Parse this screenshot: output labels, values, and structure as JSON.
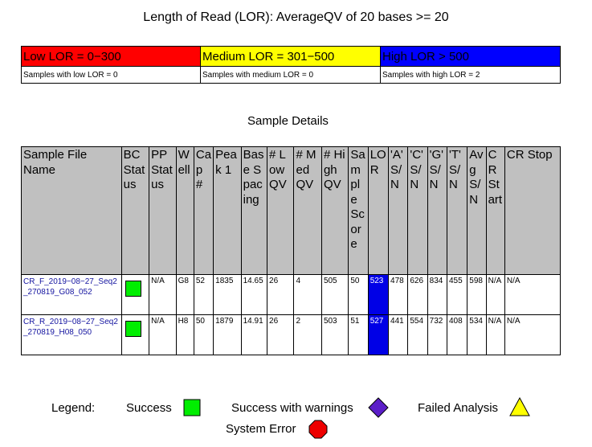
{
  "title": "Length of Read (LOR): AverageQV of 20 bases >= 20",
  "lor_summary": {
    "low": {
      "label": "Low LOR = 0−300",
      "color": "#ff0000",
      "count_text": "Samples with low LOR = 0"
    },
    "medium": {
      "label": "Medium LOR = 301−500",
      "color": "#ffff00",
      "count_text": "Samples with medium LOR = 0"
    },
    "high": {
      "label": "High LOR > 500",
      "color": "#0000ff",
      "count_text": "Samples with high LOR = 2"
    }
  },
  "details_title": "Sample Details",
  "columns": [
    "Sample File Name",
    "BC Status",
    "PP Status",
    "Well",
    "Cap #",
    "Peak 1",
    "Base Spacing",
    "# Low QV",
    "# Med QV",
    "# High QV",
    "Sample Score",
    "LOR",
    "'A' S/N",
    "'C' S/N",
    "'G' S/N",
    "'T' S/N",
    "Avg S/N",
    "CR Start",
    "CR Stop"
  ],
  "rows": [
    {
      "file": "CR_F_2019−08−27_Seq2_270819_G08_052",
      "bc_status_icon": "success-icon",
      "pp_status": "N/A",
      "well": "G8",
      "cap": "52",
      "peak1": "1835",
      "base_spacing": "14.65",
      "low_qv": "26",
      "med_qv": "4",
      "high_qv": "505",
      "sample_score": "50",
      "lor": "523",
      "a_sn": "478",
      "c_sn": "626",
      "g_sn": "834",
      "t_sn": "455",
      "avg_sn": "598",
      "cr_start": "N/A",
      "cr_stop": "N/A"
    },
    {
      "file": "CR_R_2019−08−27_Seq2_270819_H08_050",
      "bc_status_icon": "success-icon",
      "pp_status": "N/A",
      "well": "H8",
      "cap": "50",
      "peak1": "1879",
      "base_spacing": "14.91",
      "low_qv": "26",
      "med_qv": "2",
      "high_qv": "503",
      "sample_score": "51",
      "lor": "527",
      "a_sn": "441",
      "c_sn": "554",
      "g_sn": "732",
      "t_sn": "408",
      "avg_sn": "534",
      "cr_start": "N/A",
      "cr_stop": "N/A"
    }
  ],
  "legend": {
    "label": "Legend:",
    "success": "Success",
    "warnings": "Success with warnings",
    "failed": "Failed Analysis",
    "system_error": "System Error"
  },
  "colors": {
    "success": "#00ee00",
    "warning": "#5b1ec8",
    "failed": "#ffff00",
    "error": "#ee0000",
    "lor_cell": "#0000e6",
    "file_link": "#1414a0"
  }
}
